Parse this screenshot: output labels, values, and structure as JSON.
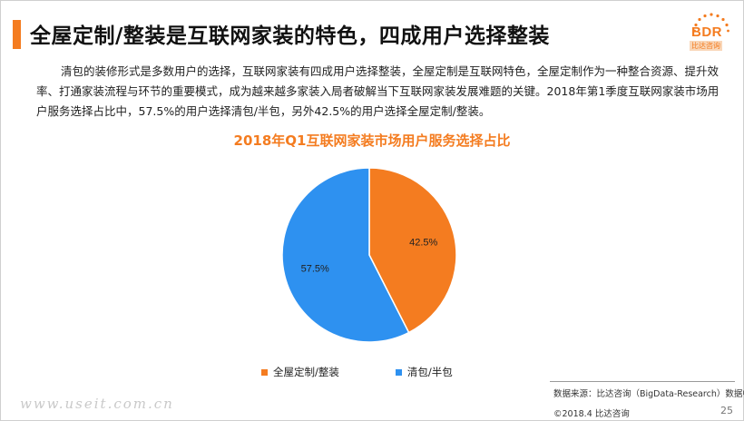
{
  "header": {
    "title": "全屋定制/整装是互联网家装的特色，四成用户选择整装"
  },
  "logo": {
    "text": "BDR",
    "subtext": "比达咨询",
    "color": "#f47c20"
  },
  "paragraph": "清包的装修形式是多数用户的选择，互联网家装有四成用户选择整装，全屋定制是互联网特色，全屋定制作为一种整合资源、提升效率、打通家装流程与环节的重要模式，成为越来越多家装入局者破解当下互联网家装发展难题的关键。2018年第1季度互联网家装市场用户服务选择占比中，57.5%的用户选择清包/半包，另外42.5%的用户选择全屋定制/整装。",
  "chart_data": {
    "type": "pie",
    "title": "2018年Q1互联网家装市场用户服务选择占比",
    "categories": [
      "全屋定制/整装",
      "清包/半包"
    ],
    "values": [
      42.5,
      57.5
    ],
    "data_labels": [
      "42.5%",
      "57.5%"
    ],
    "colors": [
      "#f47c20",
      "#2e91f0"
    ],
    "legend": "bottom"
  },
  "footer": {
    "source": "数据来源：比达咨询（BigData-Research）数据中心",
    "copyright": "©2018.4  比达咨询",
    "page": "25"
  },
  "watermark": "www.useit.com.cn"
}
